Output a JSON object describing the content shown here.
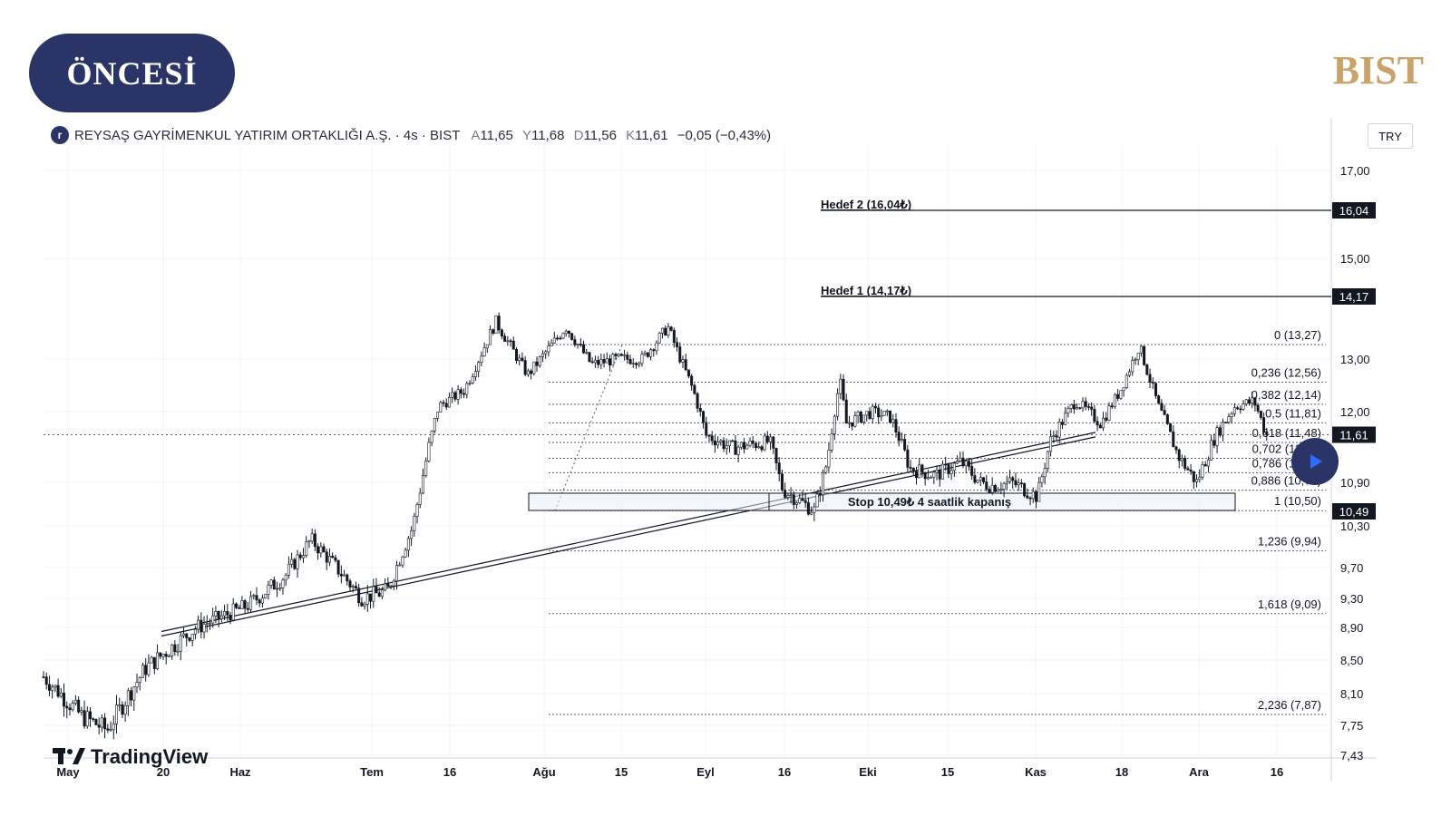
{
  "badge": {
    "label": "ÖNCESİ"
  },
  "brand": {
    "label": "BIST"
  },
  "header": {
    "symbol_icon": "r",
    "title": "REYSAŞ GAYRİMENKUL YATIRIM ORTAKLIĞI A.Ş. · 4s · BIST",
    "open_label": "A",
    "open": "11,65",
    "high_label": "Y",
    "high": "11,68",
    "low_label": "D",
    "low": "11,56",
    "close_label": "K",
    "close": "11,61",
    "change": "−0,05 (−0,43%)"
  },
  "currency": "TRY",
  "watermark": {
    "label": "TradingView",
    "icon": "tradingview-logo-icon"
  },
  "play_button": {
    "icon": "play-icon"
  },
  "colors": {
    "badge": "#2b3467",
    "brand": "#c9a36a",
    "candle": "#131722",
    "grid": "#f0f3fa"
  },
  "chart_data": {
    "type": "candlestick",
    "x_ticks": [
      "May",
      "20",
      "Haz",
      "Tem",
      "16",
      "Ağu",
      "15",
      "Eyl",
      "16",
      "Eki",
      "15",
      "Kas",
      "18",
      "Ara",
      "16"
    ],
    "y_ticks": [
      "17,00",
      "15,00",
      "13,00",
      "12,00",
      "10,90",
      "10,30",
      "9,70",
      "9,30",
      "8,90",
      "8,50",
      "8,10",
      "7,75",
      "7,43"
    ],
    "price_path": [
      [
        0,
        8.3
      ],
      [
        0.03,
        7.85
      ],
      [
        0.05,
        7.7
      ],
      [
        0.08,
        8.4
      ],
      [
        0.12,
        8.9
      ],
      [
        0.16,
        9.2
      ],
      [
        0.19,
        9.6
      ],
      [
        0.21,
        10.1
      ],
      [
        0.25,
        9.3
      ],
      [
        0.27,
        9.4
      ],
      [
        0.29,
        10.3
      ],
      [
        0.31,
        12.1
      ],
      [
        0.33,
        12.4
      ],
      [
        0.355,
        13.7
      ],
      [
        0.38,
        12.7
      ],
      [
        0.41,
        13.6
      ],
      [
        0.43,
        12.9
      ],
      [
        0.45,
        13.0
      ],
      [
        0.47,
        13.0
      ],
      [
        0.49,
        13.6
      ],
      [
        0.51,
        12.4
      ],
      [
        0.52,
        11.6
      ],
      [
        0.54,
        11.4
      ],
      [
        0.57,
        11.5
      ],
      [
        0.58,
        10.8
      ],
      [
        0.605,
        10.5
      ],
      [
        0.615,
        11.2
      ],
      [
        0.625,
        12.6
      ],
      [
        0.63,
        11.8
      ],
      [
        0.65,
        12.0
      ],
      [
        0.665,
        11.9
      ],
      [
        0.68,
        11.1
      ],
      [
        0.7,
        11.0
      ],
      [
        0.72,
        11.2
      ],
      [
        0.735,
        10.9
      ],
      [
        0.745,
        10.85
      ],
      [
        0.76,
        10.9
      ],
      [
        0.78,
        10.7
      ],
      [
        0.79,
        11.5
      ],
      [
        0.81,
        12.2
      ],
      [
        0.83,
        11.8
      ],
      [
        0.845,
        12.4
      ],
      [
        0.86,
        13.25
      ],
      [
        0.875,
        12.1
      ],
      [
        0.89,
        11.3
      ],
      [
        0.905,
        10.9
      ],
      [
        0.92,
        11.6
      ],
      [
        0.935,
        12.1
      ],
      [
        0.95,
        12.2
      ],
      [
        0.96,
        11.6
      ]
    ],
    "fibonacci": [
      {
        "label": "0 (13,27)",
        "value": 13.27
      },
      {
        "label": "0,236 (12,56)",
        "value": 12.56
      },
      {
        "label": "0,382 (12,14)",
        "value": 12.14
      },
      {
        "label": "0,5 (11,81)",
        "value": 11.81
      },
      {
        "label": "0,618 (11,48)",
        "value": 11.48
      },
      {
        "label": "0,702 (11,25)",
        "value": 11.25
      },
      {
        "label": "0,786 (11,04)",
        "value": 11.04
      },
      {
        "label": "0,886 (10,79)",
        "value": 10.79
      },
      {
        "label": "1 (10,50)",
        "value": 10.5
      },
      {
        "label": "1,236 (9,94)",
        "value": 9.94
      },
      {
        "label": "1,618 (9,09)",
        "value": 9.09
      },
      {
        "label": "2,236 (7,87)",
        "value": 7.87
      }
    ],
    "targets": [
      {
        "label": "Hedef 2 (16,04₺)",
        "value": 16.04,
        "price_tag": "16,04"
      },
      {
        "label": "Hedef 1 (14,17₺)",
        "value": 14.17,
        "price_tag": "14,17"
      }
    ],
    "stop": {
      "label": "Stop 10,49₺ 4 saatlik kapanış",
      "value": 10.49,
      "price_tag": "10,49"
    },
    "last_price": {
      "value": 11.61,
      "price_tag": "11,61"
    },
    "trendline": {
      "from": {
        "date": "May",
        "price": 8.85
      },
      "to": {
        "date": "Kas",
        "price": 11.65
      }
    }
  }
}
